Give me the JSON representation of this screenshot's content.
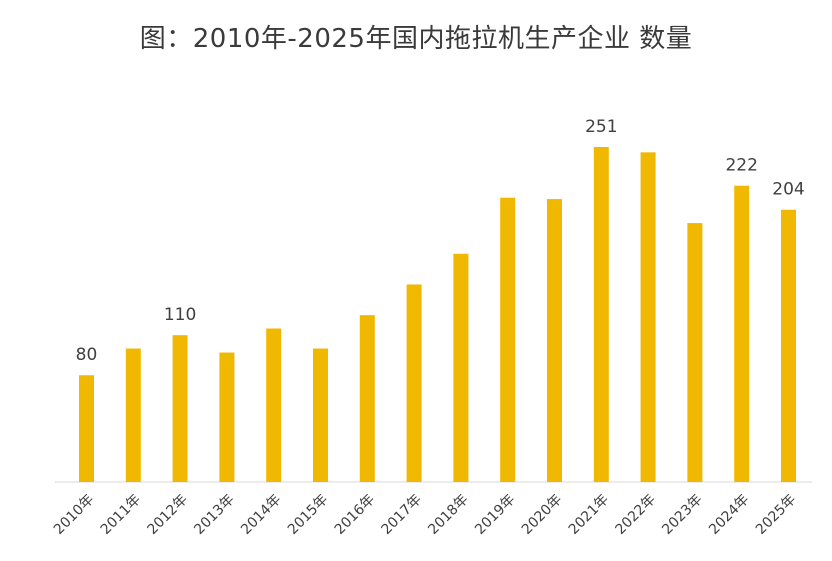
{
  "chart_data": {
    "type": "bar",
    "title": "图：2010年-2025年国内拖拉机生产企业 数量",
    "categories": [
      "2010年",
      "2011年",
      "2012年",
      "2013年",
      "2014年",
      "2015年",
      "2016年",
      "2017年",
      "2018年",
      "2019年",
      "2020年",
      "2021年",
      "2022年",
      "2023年",
      "2024年",
      "2025年"
    ],
    "values": [
      80,
      100,
      110,
      97,
      115,
      100,
      125,
      148,
      171,
      213,
      212,
      251,
      247,
      194,
      222,
      204
    ],
    "data_labels": {
      "0": "80",
      "2": "110",
      "11": "251",
      "14": "222",
      "15": "204"
    },
    "ylim": [
      0,
      270
    ],
    "grid": false,
    "legend": "none",
    "bar_color": "#F0B800",
    "axis_color": "#d9d9d9"
  }
}
